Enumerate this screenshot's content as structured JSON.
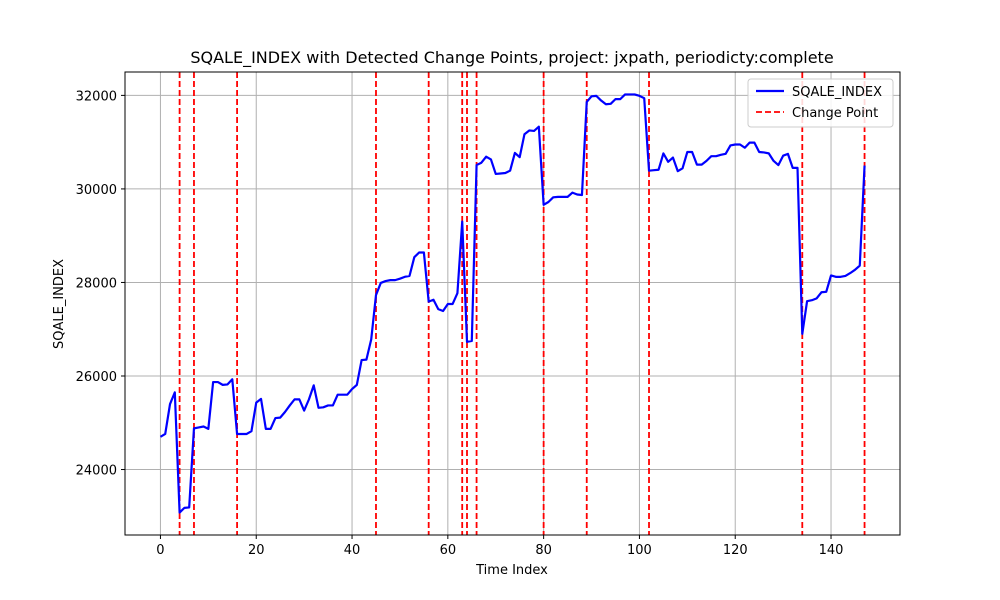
{
  "chart_data": {
    "type": "line",
    "title": "SQALE_INDEX with Detected Change Points, project: jxpath, periodicty:complete",
    "xlabel": "Time Index",
    "ylabel": "SQALE_INDEX",
    "xlim": [
      -7.4,
      154.4
    ],
    "ylim": [
      22600,
      32500
    ],
    "xticks": [
      0,
      20,
      40,
      60,
      80,
      100,
      120,
      140
    ],
    "yticks": [
      24000,
      26000,
      28000,
      30000,
      32000
    ],
    "grid": true,
    "legend_position": "top-right",
    "series": [
      {
        "name": "SQALE_INDEX",
        "color": "#0000ff",
        "points": [
          [
            0,
            24700
          ],
          [
            1,
            24760
          ],
          [
            2,
            25400
          ],
          [
            3,
            25650
          ],
          [
            4,
            23080
          ],
          [
            5,
            23180
          ],
          [
            6,
            23190
          ],
          [
            7,
            24880
          ],
          [
            8,
            24900
          ],
          [
            9,
            24920
          ],
          [
            10,
            24870
          ],
          [
            11,
            25870
          ],
          [
            12,
            25870
          ],
          [
            13,
            25810
          ],
          [
            14,
            25820
          ],
          [
            15,
            25930
          ],
          [
            16,
            24760
          ],
          [
            17,
            24760
          ],
          [
            18,
            24760
          ],
          [
            19,
            24820
          ],
          [
            20,
            25430
          ],
          [
            21,
            25510
          ],
          [
            22,
            24870
          ],
          [
            23,
            24870
          ],
          [
            24,
            25100
          ],
          [
            25,
            25110
          ],
          [
            26,
            25230
          ],
          [
            27,
            25370
          ],
          [
            28,
            25500
          ],
          [
            29,
            25500
          ],
          [
            30,
            25260
          ],
          [
            31,
            25500
          ],
          [
            32,
            25800
          ],
          [
            33,
            25320
          ],
          [
            34,
            25330
          ],
          [
            35,
            25370
          ],
          [
            36,
            25370
          ],
          [
            37,
            25600
          ],
          [
            38,
            25600
          ],
          [
            39,
            25600
          ],
          [
            40,
            25720
          ],
          [
            41,
            25810
          ],
          [
            42,
            26340
          ],
          [
            43,
            26350
          ],
          [
            44,
            26780
          ],
          [
            45,
            27730
          ],
          [
            46,
            27990
          ],
          [
            47,
            28030
          ],
          [
            48,
            28050
          ],
          [
            49,
            28050
          ],
          [
            50,
            28080
          ],
          [
            51,
            28120
          ],
          [
            52,
            28140
          ],
          [
            53,
            28540
          ],
          [
            54,
            28640
          ],
          [
            55,
            28640
          ],
          [
            56,
            27590
          ],
          [
            57,
            27630
          ],
          [
            58,
            27430
          ],
          [
            59,
            27390
          ],
          [
            60,
            27540
          ],
          [
            61,
            27540
          ],
          [
            62,
            27770
          ],
          [
            63,
            29300
          ],
          [
            64,
            26730
          ],
          [
            65,
            26750
          ],
          [
            66,
            30510
          ],
          [
            67,
            30560
          ],
          [
            68,
            30690
          ],
          [
            69,
            30630
          ],
          [
            70,
            30320
          ],
          [
            71,
            30330
          ],
          [
            72,
            30340
          ],
          [
            73,
            30390
          ],
          [
            74,
            30770
          ],
          [
            75,
            30680
          ],
          [
            76,
            31170
          ],
          [
            77,
            31250
          ],
          [
            78,
            31240
          ],
          [
            79,
            31330
          ],
          [
            80,
            29660
          ],
          [
            81,
            29720
          ],
          [
            82,
            29820
          ],
          [
            83,
            29830
          ],
          [
            84,
            29830
          ],
          [
            85,
            29830
          ],
          [
            86,
            29920
          ],
          [
            87,
            29880
          ],
          [
            88,
            29870
          ],
          [
            89,
            31860
          ],
          [
            90,
            31980
          ],
          [
            91,
            31990
          ],
          [
            92,
            31890
          ],
          [
            93,
            31810
          ],
          [
            94,
            31820
          ],
          [
            95,
            31920
          ],
          [
            96,
            31920
          ],
          [
            97,
            32020
          ],
          [
            98,
            32020
          ],
          [
            99,
            32020
          ],
          [
            100,
            31990
          ],
          [
            101,
            31940
          ],
          [
            102,
            30390
          ],
          [
            103,
            30400
          ],
          [
            104,
            30410
          ],
          [
            105,
            30760
          ],
          [
            106,
            30580
          ],
          [
            107,
            30670
          ],
          [
            108,
            30380
          ],
          [
            109,
            30440
          ],
          [
            110,
            30790
          ],
          [
            111,
            30790
          ],
          [
            112,
            30520
          ],
          [
            113,
            30520
          ],
          [
            114,
            30600
          ],
          [
            115,
            30700
          ],
          [
            116,
            30700
          ],
          [
            117,
            30730
          ],
          [
            118,
            30750
          ],
          [
            119,
            30930
          ],
          [
            120,
            30950
          ],
          [
            121,
            30950
          ],
          [
            122,
            30880
          ],
          [
            123,
            30990
          ],
          [
            124,
            30990
          ],
          [
            125,
            30790
          ],
          [
            126,
            30780
          ],
          [
            127,
            30760
          ],
          [
            128,
            30600
          ],
          [
            129,
            30510
          ],
          [
            130,
            30710
          ],
          [
            131,
            30750
          ],
          [
            132,
            30450
          ],
          [
            133,
            30450
          ],
          [
            134,
            26900
          ],
          [
            135,
            27600
          ],
          [
            136,
            27620
          ],
          [
            137,
            27660
          ],
          [
            138,
            27790
          ],
          [
            139,
            27800
          ],
          [
            140,
            28150
          ],
          [
            141,
            28120
          ],
          [
            142,
            28120
          ],
          [
            143,
            28140
          ],
          [
            144,
            28200
          ],
          [
            145,
            28270
          ],
          [
            146,
            28360
          ],
          [
            147,
            30500
          ]
        ]
      }
    ],
    "change_points": {
      "name": "Change Point",
      "color": "#ff0000",
      "x": [
        4,
        7,
        16,
        45,
        56,
        63,
        64,
        66,
        80,
        89,
        102,
        134,
        147
      ]
    }
  }
}
